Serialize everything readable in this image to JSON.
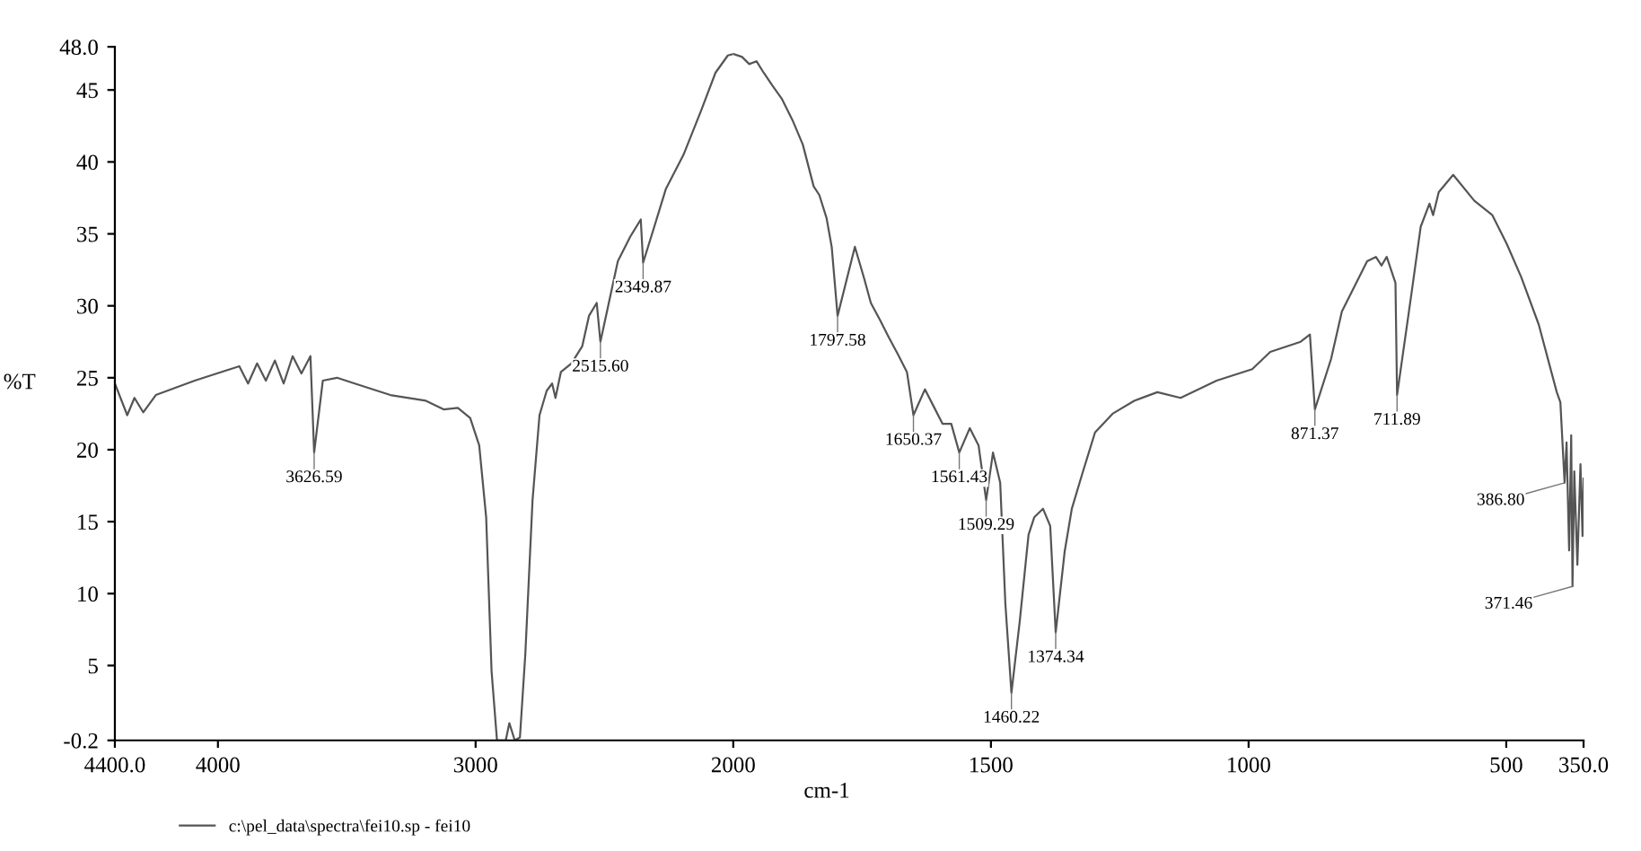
{
  "chart_data": [
    {
      "type": "line",
      "ylabel": "%T",
      "xlim": [
        4400,
        2000
      ],
      "xticks": [
        {
          "value": 4400,
          "label": "4400.0"
        },
        4000,
        3000,
        2000
      ],
      "ylim": [
        -0.2,
        48
      ],
      "yticks": [
        {
          "value": -0.2,
          "label": "-0.2"
        },
        5,
        10,
        15,
        20,
        25,
        30,
        35,
        40,
        45,
        {
          "value": 48,
          "label": "48.0"
        }
      ],
      "grid": false,
      "legend": "bottom",
      "marker": "none",
      "line_style": "solid",
      "series": [
        {
          "name": "c:\\pel_data\\spectra\\fei10.sp - fei10",
          "color": "#555555",
          "x": [
            4400,
            4352,
            4324,
            4290,
            4241,
            4090,
            3952,
            3917,
            3883,
            3848,
            3814,
            3779,
            3745,
            3710,
            3676,
            3641,
            3626.59,
            3593,
            3538,
            3469,
            3331,
            3193,
            3124,
            3069,
            3021,
            2986,
            2959,
            2938,
            2917,
            2883,
            2869,
            2848,
            2828,
            2807,
            2779,
            2752,
            2724,
            2703,
            2690,
            2669,
            2628,
            2586,
            2560,
            2530,
            2515.6,
            2448,
            2400,
            2359,
            2349.87,
            2310,
            2262,
            2193,
            2124,
            2069,
            2021,
            2000
          ],
          "values": [
            24.6,
            22.4,
            23.6,
            22.6,
            23.8,
            24.8,
            25.6,
            25.8,
            24.6,
            26,
            24.8,
            26.2,
            24.6,
            26.5,
            25.3,
            26.5,
            19.8,
            24.8,
            25,
            24.6,
            23.8,
            23.4,
            22.8,
            22.9,
            22.2,
            20.3,
            15.3,
            4.6,
            -0.2,
            -0.2,
            1,
            -0.2,
            0,
            5.8,
            16.5,
            22.4,
            24.1,
            24.6,
            23.6,
            25.4,
            26,
            27.2,
            29.3,
            30.2,
            27.5,
            33.1,
            34.8,
            36,
            33,
            35.3,
            38.1,
            40.5,
            43.6,
            46.2,
            47.4,
            47.5
          ]
        }
      ],
      "annotations": [
        {
          "text": "3626.59",
          "x": 3626.59,
          "y": 19.8
        },
        {
          "text": "2515.60",
          "x": 2515.6,
          "y": 27.5
        },
        {
          "text": "2349.87",
          "x": 2349.87,
          "y": 33
        }
      ]
    },
    {
      "type": "line",
      "xlabel": "cm-1",
      "tick_labels": "x",
      "xlim": [
        2000,
        350
      ],
      "xticks": [
        1500,
        1000,
        500,
        {
          "value": 350,
          "label": "350.0"
        }
      ],
      "ylim": [
        -0.2,
        48
      ],
      "grid": false,
      "marker": "none",
      "line_style": "solid",
      "series": [
        {
          "color": "#555555",
          "x": [
            2000,
            1983,
            1969,
            1955,
            1941,
            1924,
            1906,
            1885,
            1865,
            1844,
            1833,
            1819,
            1809,
            1797.58,
            1764,
            1746,
            1733,
            1715,
            1698,
            1680,
            1663,
            1650.37,
            1628,
            1611,
            1594,
            1577,
            1561.43,
            1541,
            1524,
            1509.29,
            1496,
            1482,
            1472,
            1460.22,
            1444,
            1427,
            1416,
            1399,
            1385,
            1374.34,
            1357,
            1343,
            1323,
            1298,
            1264,
            1222,
            1177,
            1132,
            1062,
            993,
            958,
            899,
            881,
            871.37,
            840,
            819,
            770,
            753,
            742,
            732,
            715,
            711.89,
            683,
            666,
            649,
            642,
            631,
            603,
            562,
            527,
            499,
            471,
            437,
            402,
            395,
            386.8,
            383,
            378,
            374,
            371.46,
            368,
            362,
            356,
            352,
            350
          ],
          "values": [
            47.5,
            47.3,
            46.8,
            47,
            46.2,
            45.3,
            44.4,
            42.9,
            41.2,
            38.3,
            37.7,
            36.1,
            34.1,
            29.3,
            34.1,
            31.9,
            30.2,
            29,
            27.8,
            26.6,
            25.4,
            22.4,
            24.2,
            23,
            21.8,
            21.8,
            19.8,
            21.5,
            20.3,
            16.5,
            19.8,
            17.7,
            9.3,
            3.1,
            8.1,
            14.1,
            15.3,
            15.9,
            14.7,
            7.3,
            12.9,
            15.9,
            18.3,
            21.2,
            22.5,
            23.4,
            24,
            23.6,
            24.8,
            25.6,
            26.8,
            27.5,
            28,
            22.8,
            26.3,
            29.6,
            33.1,
            33.4,
            32.8,
            33.4,
            31.6,
            23.8,
            31.1,
            35.5,
            37.1,
            36.3,
            37.9,
            39.1,
            37.3,
            36.3,
            34.3,
            32,
            28.7,
            24,
            23.3,
            17.7,
            20.5,
            13,
            21,
            10.5,
            18.5,
            12,
            19,
            14,
            18
          ]
        }
      ],
      "annotations": [
        {
          "text": "1797.58",
          "x": 1797.58,
          "y": 29.3
        },
        {
          "text": "1650.37",
          "x": 1650.37,
          "y": 22.4
        },
        {
          "text": "1561.43",
          "x": 1561.43,
          "y": 19.8
        },
        {
          "text": "1509.29",
          "x": 1509.29,
          "y": 16.5
        },
        {
          "text": "1460.22",
          "x": 1460.22,
          "y": 3.1
        },
        {
          "text": "1374.34",
          "x": 1374.34,
          "y": 7.3
        },
        {
          "text": "871.37",
          "x": 871.37,
          "y": 22.8
        },
        {
          "text": "711.89",
          "x": 711.89,
          "y": 23.8
        },
        {
          "text": "386.80",
          "x": 386.8,
          "y": 17.7
        },
        {
          "text": "371.46",
          "x": 371.46,
          "y": 10.5
        }
      ]
    }
  ]
}
